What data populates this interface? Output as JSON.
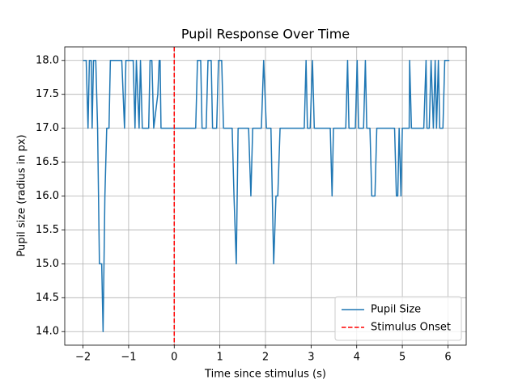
{
  "chart_data": {
    "type": "line",
    "title": "Pupil Response Over Time",
    "x_label": "Time since stimulus (s)",
    "y_label": "Pupil size (radius in px)",
    "x": [
      -2,
      -1.93,
      -1.89,
      -1.86,
      -1.82,
      -1.8,
      -1.77,
      -1.72,
      -1.68,
      -1.64,
      -1.59,
      -1.56,
      -1.52,
      -1.48,
      -1.43,
      -1.4,
      -1.15,
      -1.09,
      -1.06,
      -0.9,
      -0.86,
      -0.83,
      -0.77,
      -0.74,
      -0.7,
      -0.56,
      -0.53,
      -0.49,
      -0.45,
      -0.36,
      -0.33,
      -0.31,
      -0.29,
      0,
      0.47,
      0.51,
      0.58,
      0.61,
      0.7,
      0.74,
      0.81,
      0.84,
      0.93,
      0.97,
      1.04,
      1.08,
      1.27,
      1.31,
      1.36,
      1.4,
      1.63,
      1.68,
      1.72,
      1.91,
      1.96,
      2.02,
      2.12,
      2.18,
      2.23,
      2.27,
      2.32,
      2.85,
      2.89,
      2.92,
      2.98,
      3.03,
      3.07,
      3.42,
      3.46,
      3.49,
      3.76,
      3.8,
      3.83,
      3.97,
      4.01,
      4.04,
      4.15,
      4.19,
      4.22,
      4.29,
      4.33,
      4.4,
      4.44,
      4.83,
      4.87,
      4.9,
      4.93,
      4.97,
      5.0,
      5.15,
      5.16,
      5.2,
      5.47,
      5.52,
      5.54,
      5.59,
      5.63,
      5.68,
      5.72,
      5.75,
      5.79,
      5.82,
      5.89,
      5.93,
      6.03
    ],
    "series": [
      {
        "name": "Pupil Size",
        "color": "#1f77b4",
        "values": [
          18,
          18,
          17,
          18,
          18,
          17,
          18,
          18,
          17,
          15,
          15,
          14,
          16,
          17,
          17,
          18,
          18,
          17,
          18,
          18,
          17,
          18,
          17,
          18,
          17,
          17,
          18,
          18,
          17,
          17.5,
          18,
          18,
          17,
          17,
          17,
          18,
          18,
          17,
          17,
          18,
          18,
          17,
          17,
          18,
          18,
          17,
          17,
          16,
          15,
          17,
          17,
          16,
          17,
          17,
          18,
          17,
          17,
          15,
          16,
          16,
          17,
          17,
          18,
          17,
          17,
          18,
          17,
          17,
          16,
          17,
          17,
          18,
          17,
          17,
          18,
          17,
          17,
          18,
          17,
          17,
          16,
          16,
          17,
          17,
          16,
          16,
          17,
          16,
          17,
          17,
          18,
          17,
          17,
          18,
          17,
          17,
          18,
          17,
          18,
          17,
          18,
          17,
          17,
          18,
          18
        ]
      }
    ],
    "vlines": [
      {
        "name": "Stimulus Onset",
        "color": "#ff0000",
        "x": 0
      }
    ],
    "xlim": [
      -2.4,
      6.4
    ],
    "ylim": [
      13.8,
      18.2
    ],
    "xticks": [
      {
        "value": -2,
        "label": "−2"
      },
      {
        "value": -1,
        "label": "−1"
      },
      0,
      1,
      2,
      3,
      4,
      5,
      6
    ],
    "yticks": [
      {
        "value": 14,
        "label": "14.0"
      },
      14.5,
      {
        "value": 15,
        "label": "15.0"
      },
      15.5,
      {
        "value": 16,
        "label": "16.0"
      },
      16.5,
      {
        "value": 17,
        "label": "17.0"
      },
      17.5,
      {
        "value": 18,
        "label": "18.0"
      }
    ],
    "grid": true,
    "legend": "lower right"
  }
}
